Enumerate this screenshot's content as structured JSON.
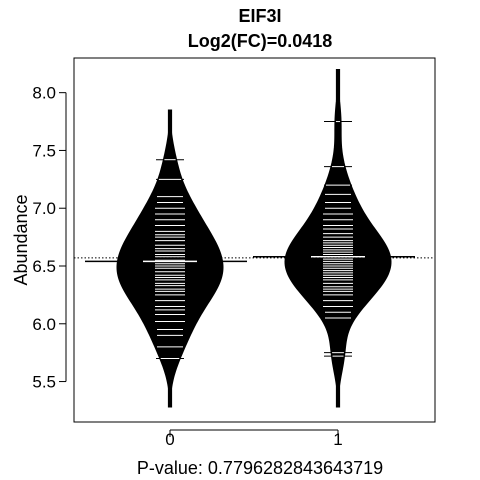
{
  "chart_data": {
    "type": "beanplot",
    "title": "EIF3I",
    "subtitle": "Log2(FC)=0.0418",
    "xlabel": "P-value: 0.7796282843643719",
    "ylabel": "Abundance",
    "categories": [
      "0",
      "1"
    ],
    "ylim": [
      5.15,
      8.3
    ],
    "yticks": [
      5.5,
      6.0,
      6.5,
      7.0,
      7.5,
      8.0
    ],
    "ytick_labels": [
      "5.5",
      "6.0",
      "6.5",
      "7.0",
      "7.5",
      "8.0"
    ],
    "overall_mean": 6.57,
    "groups": [
      {
        "name": "0",
        "mean": 6.54,
        "range": [
          5.28,
          7.85
        ],
        "observations": [
          5.7,
          5.8,
          5.9,
          5.95,
          6.02,
          6.08,
          6.12,
          6.15,
          6.2,
          6.25,
          6.28,
          6.3,
          6.33,
          6.35,
          6.38,
          6.4,
          6.42,
          6.45,
          6.48,
          6.5,
          6.52,
          6.55,
          6.58,
          6.6,
          6.63,
          6.65,
          6.68,
          6.72,
          6.75,
          6.77,
          6.8,
          6.85,
          6.9,
          6.95,
          7.0,
          7.05,
          7.1,
          7.25,
          7.42
        ]
      },
      {
        "name": "1",
        "mean": 6.58,
        "range": [
          5.28,
          8.2
        ],
        "observations": [
          5.72,
          5.75,
          6.05,
          6.1,
          6.15,
          6.2,
          6.25,
          6.28,
          6.3,
          6.32,
          6.35,
          6.38,
          6.4,
          6.42,
          6.44,
          6.46,
          6.48,
          6.5,
          6.52,
          6.54,
          6.56,
          6.58,
          6.6,
          6.62,
          6.64,
          6.66,
          6.68,
          6.7,
          6.72,
          6.75,
          6.78,
          6.82,
          6.85,
          6.9,
          6.95,
          7.0,
          7.05,
          7.12,
          7.2,
          7.36,
          7.75
        ]
      }
    ]
  }
}
